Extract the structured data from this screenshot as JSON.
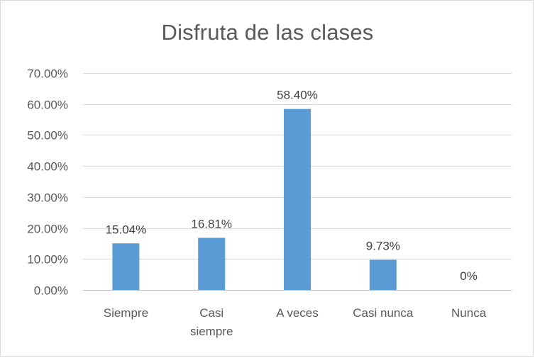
{
  "chart_data": {
    "type": "bar",
    "title": "Disfruta de las clases",
    "categories": [
      "Siempre",
      "Casi siempre",
      "A veces",
      "Casi nunca",
      "Nunca"
    ],
    "category_lines": [
      [
        "Siempre"
      ],
      [
        "Casi",
        "siempre"
      ],
      [
        "A veces"
      ],
      [
        "Casi nunca"
      ],
      [
        "Nunca"
      ]
    ],
    "values": [
      15.04,
      16.81,
      58.4,
      9.73,
      0
    ],
    "data_labels": [
      "15.04%",
      "16.81%",
      "58.40%",
      "9.73%",
      "0%"
    ],
    "y_ticks": [
      0,
      10,
      20,
      30,
      40,
      50,
      60,
      70
    ],
    "y_tick_labels": [
      "0.00%",
      "10.00%",
      "20.00%",
      "30.00%",
      "40.00%",
      "50.00%",
      "60.00%",
      "70.00%"
    ],
    "ylim": [
      0,
      70
    ],
    "grid": true,
    "legend": "none",
    "colors": {
      "bar": "#5b9bd5",
      "grid": "#d9d9d9",
      "axis": "#bfbfbf",
      "text": "#595959"
    }
  }
}
